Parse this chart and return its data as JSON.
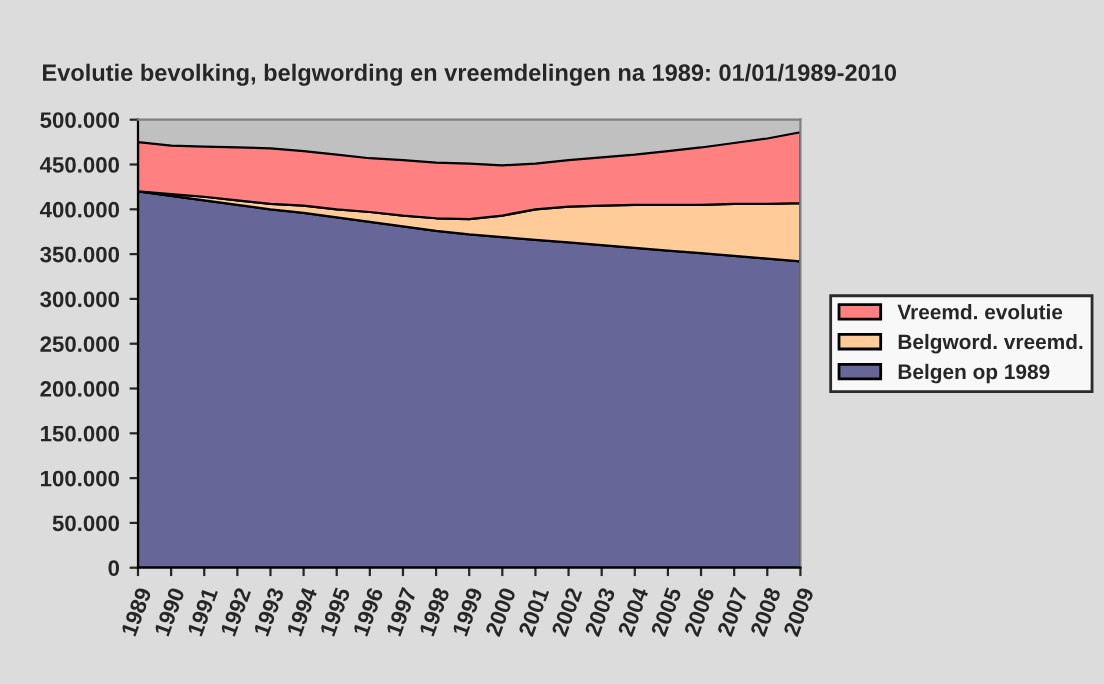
{
  "chart_data": {
    "type": "area",
    "stacked": true,
    "title": "Evolutie bevolking, belgwording en vreemdelingen na 1989: 01/01/1989-2010",
    "categories": [
      "1989",
      "1990",
      "1991",
      "1992",
      "1993",
      "1994",
      "1995",
      "1996",
      "1997",
      "1998",
      "1999",
      "2000",
      "2001",
      "2002",
      "2003",
      "2004",
      "2005",
      "2006",
      "2007",
      "2008",
      "2009"
    ],
    "series": [
      {
        "name": "Belgen op 1989",
        "color": "#666699",
        "values": [
          420000,
          415000,
          410000,
          405000,
          400000,
          396000,
          391000,
          386000,
          381000,
          376000,
          372000,
          369000,
          366000,
          363000,
          360000,
          357000,
          354000,
          351000,
          348000,
          345000,
          342000
        ]
      },
      {
        "name": "Belgword. vreemd.",
        "color": "#ffcc99",
        "values": [
          0,
          2000,
          4000,
          5000,
          6000,
          8000,
          9000,
          11000,
          12000,
          14000,
          17000,
          24000,
          34000,
          40000,
          44000,
          48000,
          51000,
          54000,
          58000,
          61000,
          65000
        ]
      },
      {
        "name": "Vreemd. evolutie",
        "color": "#ff8080",
        "values": [
          55000,
          54000,
          56000,
          59000,
          62000,
          61000,
          61000,
          60000,
          62000,
          62000,
          62000,
          56000,
          51000,
          52000,
          54000,
          56000,
          60000,
          64000,
          68000,
          73000,
          79000
        ]
      }
    ],
    "ylim": [
      0,
      500000
    ],
    "yticks": [
      0,
      {
        "value": 50000,
        "label": "50.000"
      },
      {
        "value": 100000,
        "label": "100.000"
      },
      {
        "value": 150000,
        "label": "150.000"
      },
      {
        "value": 200000,
        "label": "200.000"
      },
      {
        "value": 250000,
        "label": "250.000"
      },
      {
        "value": 300000,
        "label": "300.000"
      },
      {
        "value": 350000,
        "label": "350.000"
      },
      {
        "value": 400000,
        "label": "400.000"
      },
      {
        "value": 450000,
        "label": "450.000"
      },
      {
        "value": 500000,
        "label": "500.000"
      }
    ],
    "grid": false,
    "legend": "right"
  }
}
